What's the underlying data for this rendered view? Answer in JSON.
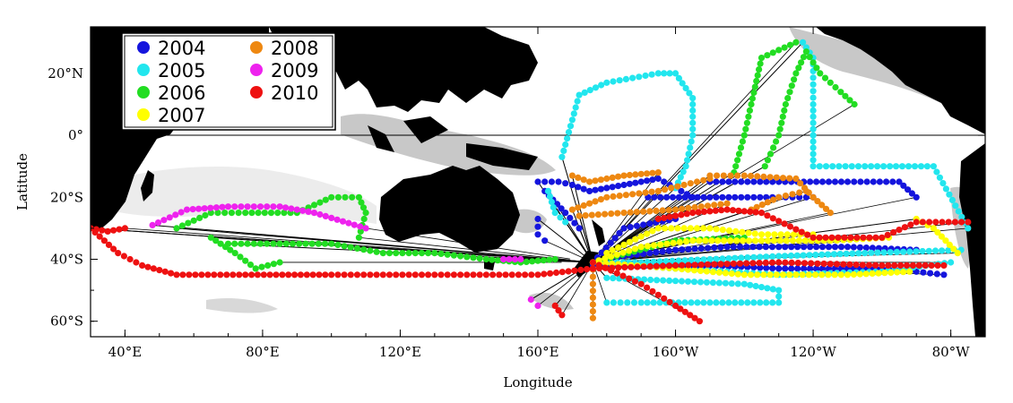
{
  "axes": {
    "x_label": "Longitude",
    "y_label": "Latitude",
    "x_ticks": [
      {
        "lon": 40,
        "label": "40°E"
      },
      {
        "lon": 80,
        "label": "80°E"
      },
      {
        "lon": 120,
        "label": "120°E"
      },
      {
        "lon": 160,
        "label": "160°E"
      },
      {
        "lon": 200,
        "label": "160°W"
      },
      {
        "lon": 240,
        "label": "120°W"
      },
      {
        "lon": 280,
        "label": "80°W"
      }
    ],
    "y_ticks": [
      {
        "lat": 20,
        "label": "20°N"
      },
      {
        "lat": 0,
        "label": "0°"
      },
      {
        "lat": -20,
        "label": "20°S"
      },
      {
        "lat": -40,
        "label": "40°S"
      },
      {
        "lat": -60,
        "label": "60°S"
      }
    ],
    "lon_range": [
      30,
      290
    ],
    "lat_range": [
      -65,
      35
    ]
  },
  "legend": {
    "placement": "top-left",
    "entries": [
      {
        "label": "2004",
        "color": "#1515dd"
      },
      {
        "label": "2005",
        "color": "#22e6ee"
      },
      {
        "label": "2006",
        "color": "#22dd22"
      },
      {
        "label": "2007",
        "color": "#ffff00"
      },
      {
        "label": "2008",
        "color": "#ee8811"
      },
      {
        "label": "2009",
        "color": "#ee22ee"
      },
      {
        "label": "2010",
        "color": "#ee1111"
      }
    ]
  },
  "hub": {
    "lon": 176,
    "lat": -41
  },
  "chart_data": {
    "type": "scatter",
    "x_unit": "degrees longitude east (0-360)",
    "y_unit": "degrees latitude",
    "series": [
      {
        "name": "2004",
        "color": "#1515dd",
        "tracks": [
          [
            [
              160,
              -15
            ],
            [
              166,
              -15
            ],
            [
              170,
              -16
            ],
            [
              175,
              -18
            ],
            [
              185,
              -16
            ],
            [
              195,
              -14
            ],
            [
              200,
              -17
            ],
            [
              205,
              -20
            ]
          ],
          [
            [
              160,
              -27
            ],
            [
              160,
              -32
            ],
            [
              162,
              -34
            ]
          ],
          [
            [
              162,
              -18
            ],
            [
              168,
              -25
            ],
            [
              172,
              -30
            ]
          ],
          [
            [
              176,
              -41
            ],
            [
              185,
              -39
            ],
            [
              200,
              -37
            ],
            [
              215,
              -36
            ],
            [
              230,
              -36
            ],
            [
              250,
              -36
            ],
            [
              270,
              -37
            ]
          ],
          [
            [
              176,
              -42
            ],
            [
              190,
              -42
            ],
            [
              210,
              -42
            ],
            [
              230,
              -43
            ],
            [
              250,
              -43
            ],
            [
              270,
              -44
            ],
            [
              278,
              -45
            ]
          ],
          [
            [
              210,
              -15
            ],
            [
              230,
              -15
            ],
            [
              250,
              -15
            ],
            [
              265,
              -15
            ],
            [
              270,
              -20
            ]
          ],
          [
            [
              192,
              -20
            ],
            [
              210,
              -20
            ],
            [
              230,
              -20
            ],
            [
              240,
              -20
            ]
          ],
          [
            [
              176,
              -41
            ],
            [
              185,
              -30
            ],
            [
              200,
              -27
            ]
          ]
        ]
      },
      {
        "name": "2005",
        "color": "#22e6ee",
        "tracks": [
          [
            [
              163,
              -18
            ],
            [
              165,
              -25
            ],
            [
              168,
              -28
            ]
          ],
          [
            [
              167,
              -7
            ],
            [
              170,
              5
            ],
            [
              172,
              13
            ],
            [
              180,
              17
            ],
            [
              195,
              20
            ],
            [
              200,
              20
            ],
            [
              205,
              12
            ],
            [
              205,
              0
            ],
            [
              203,
              -10
            ],
            [
              200,
              -17
            ]
          ],
          [
            [
              237,
              30
            ],
            [
              240,
              25
            ],
            [
              240,
              10
            ],
            [
              240,
              0
            ],
            [
              240,
              -10
            ],
            [
              255,
              -10
            ],
            [
              275,
              -10
            ],
            [
              285,
              -30
            ]
          ],
          [
            [
              176,
              -41
            ],
            [
              190,
              -41
            ],
            [
              210,
              -40
            ],
            [
              230,
              -39
            ],
            [
              255,
              -38
            ],
            [
              283,
              -37
            ]
          ],
          [
            [
              180,
              -46
            ],
            [
              200,
              -47
            ],
            [
              220,
              -48
            ],
            [
              230,
              -50
            ],
            [
              230,
              -54
            ],
            [
              210,
              -54
            ],
            [
              190,
              -54
            ],
            [
              180,
              -54
            ]
          ],
          [
            [
              176,
              -41
            ],
            [
              200,
              -43
            ],
            [
              230,
              -45
            ],
            [
              260,
              -44
            ],
            [
              280,
              -41
            ]
          ]
        ]
      },
      {
        "name": "2006",
        "color": "#22dd22",
        "tracks": [
          [
            [
              55,
              -30
            ],
            [
              65,
              -25
            ],
            [
              75,
              -25
            ],
            [
              90,
              -25
            ],
            [
              100,
              -20
            ],
            [
              108,
              -20
            ],
            [
              110,
              -25
            ],
            [
              108,
              -33
            ]
          ],
          [
            [
              70,
              -35
            ],
            [
              85,
              -35
            ],
            [
              100,
              -35
            ],
            [
              115,
              -38
            ],
            [
              130,
              -38
            ],
            [
              145,
              -40
            ],
            [
              155,
              -41
            ],
            [
              165,
              -40
            ]
          ],
          [
            [
              65,
              -33
            ],
            [
              72,
              -38
            ],
            [
              78,
              -43
            ],
            [
              85,
              -41
            ]
          ],
          [
            [
              226,
              -10
            ],
            [
              230,
              0
            ],
            [
              232,
              10
            ],
            [
              235,
              20
            ],
            [
              238,
              27
            ],
            [
              242,
              20
            ],
            [
              248,
              14
            ],
            [
              252,
              10
            ]
          ],
          [
            [
              217,
              -12
            ],
            [
              220,
              0
            ],
            [
              222,
              10
            ],
            [
              225,
              25
            ],
            [
              235,
              30
            ]
          ],
          [
            [
              176,
              -41
            ],
            [
              200,
              -34
            ],
            [
              220,
              -33
            ]
          ]
        ]
      },
      {
        "name": "2007",
        "color": "#ffff00",
        "tracks": [
          [
            [
              180,
              -38
            ],
            [
              195,
              -30
            ],
            [
              210,
              -30
            ],
            [
              225,
              -32
            ],
            [
              240,
              -32
            ]
          ],
          [
            [
              176,
              -41
            ],
            [
              190,
              -36
            ],
            [
              205,
              -34
            ],
            [
              225,
              -34
            ],
            [
              245,
              -34
            ],
            [
              262,
              -33
            ]
          ],
          [
            [
              176,
              -41
            ],
            [
              200,
              -43
            ],
            [
              220,
              -45
            ],
            [
              250,
              -45
            ],
            [
              268,
              -44
            ]
          ],
          [
            [
              270,
              -27
            ],
            [
              275,
              -30
            ],
            [
              282,
              -38
            ]
          ]
        ]
      },
      {
        "name": "2008",
        "color": "#ee8811",
        "tracks": [
          [
            [
              170,
              -13
            ],
            [
              175,
              -15
            ],
            [
              185,
              -13
            ],
            [
              195,
              -12
            ]
          ],
          [
            [
              170,
              -24
            ],
            [
              180,
              -20
            ],
            [
              195,
              -18
            ],
            [
              210,
              -14
            ]
          ],
          [
            [
              172,
              -26
            ],
            [
              185,
              -25
            ],
            [
              200,
              -24
            ],
            [
              215,
              -22
            ]
          ],
          [
            [
              210,
              -13
            ],
            [
              220,
              -13
            ],
            [
              235,
              -14
            ],
            [
              240,
              -20
            ],
            [
              245,
              -25
            ]
          ],
          [
            [
              222,
              -24
            ],
            [
              230,
              -20
            ],
            [
              238,
              -18
            ]
          ],
          [
            [
              176,
              -41
            ],
            [
              176,
              -48
            ],
            [
              176,
              -59
            ]
          ]
        ]
      },
      {
        "name": "2009",
        "color": "#ee22ee",
        "tracks": [
          [
            [
              48,
              -29
            ],
            [
              58,
              -24
            ],
            [
              70,
              -23
            ],
            [
              85,
              -23
            ],
            [
              95,
              -25
            ],
            [
              110,
              -30
            ]
          ],
          [
            [
              150,
              -40
            ],
            [
              155,
              -40
            ]
          ],
          [
            [
              158,
              -53
            ],
            [
              160,
              -55
            ]
          ]
        ]
      },
      {
        "name": "2010",
        "color": "#ee1111",
        "tracks": [
          [
            [
              30,
              -30
            ],
            [
              35,
              -31
            ],
            [
              40,
              -30
            ]
          ],
          [
            [
              30,
              -30
            ],
            [
              38,
              -38
            ],
            [
              45,
              -42
            ],
            [
              55,
              -45
            ],
            [
              75,
              -45
            ],
            [
              100,
              -45
            ],
            [
              130,
              -45
            ],
            [
              160,
              -45
            ],
            [
              176,
              -43
            ]
          ],
          [
            [
              176,
              -43
            ],
            [
              200,
              -42
            ],
            [
              230,
              -41
            ],
            [
              260,
              -42
            ],
            [
              278,
              -42
            ]
          ],
          [
            [
              195,
              -27
            ],
            [
              205,
              -25
            ],
            [
              215,
              -24
            ],
            [
              225,
              -25
            ],
            [
              240,
              -33
            ],
            [
              260,
              -33
            ],
            [
              270,
              -28
            ],
            [
              285,
              -28
            ]
          ],
          [
            [
              176,
              -41
            ],
            [
              190,
              -48
            ],
            [
              200,
              -55
            ],
            [
              207,
              -60
            ]
          ],
          [
            [
              165,
              -55
            ],
            [
              167,
              -58
            ]
          ]
        ]
      }
    ]
  }
}
